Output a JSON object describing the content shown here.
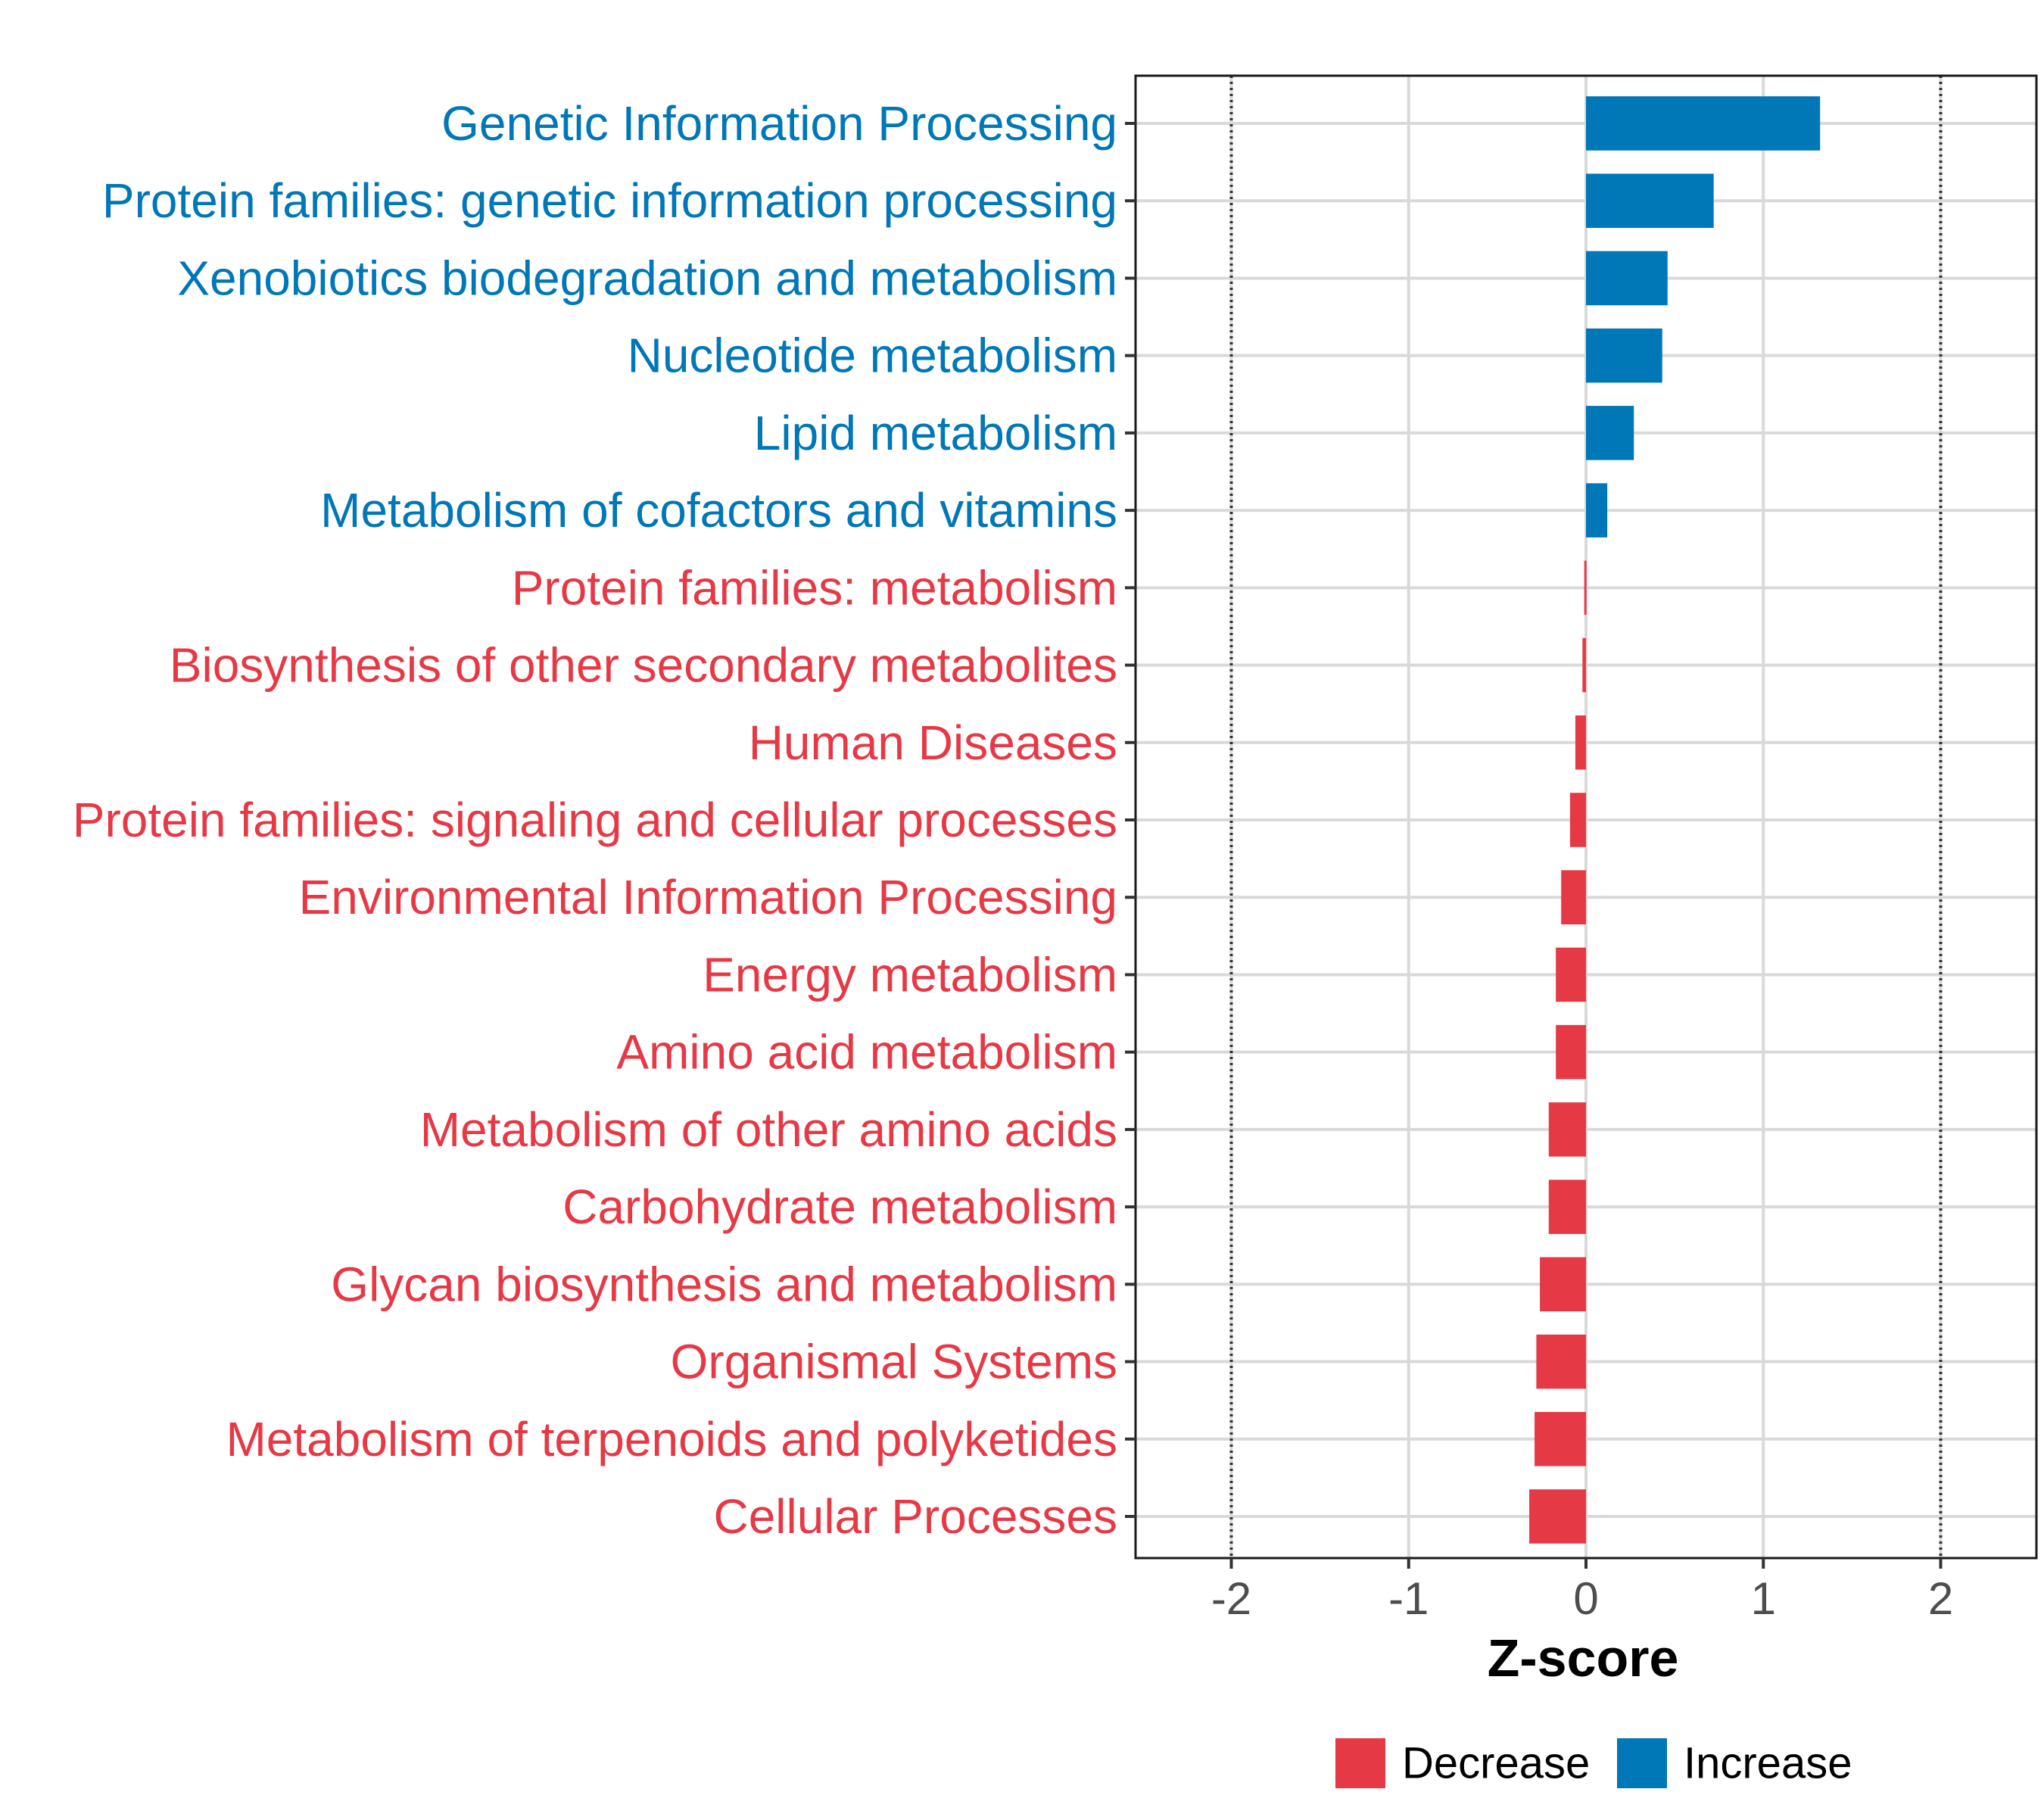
{
  "chart_data": {
    "type": "bar",
    "orientation": "horizontal",
    "title": "",
    "xlabel": "Z-score",
    "ylabel": "",
    "xlim": [
      -2.54,
      2.54
    ],
    "xticks": [
      -2,
      -1,
      0,
      1,
      2
    ],
    "tick_labels": [
      "-2",
      "-1",
      "0",
      "1",
      "2"
    ],
    "reference_lines": [
      -2,
      2
    ],
    "grid": true,
    "legend_position": "bottom",
    "colors": {
      "Decrease": "#e63946",
      "Increase": "#0077b6"
    },
    "categories": [
      "Genetic Information Processing",
      "Protein families: genetic information processing",
      "Xenobiotics biodegradation and metabolism",
      "Nucleotide metabolism",
      "Lipid metabolism",
      "Metabolism of cofactors and vitamins",
      "Protein families: metabolism",
      "Biosynthesis of other secondary metabolites",
      "Human Diseases",
      "Protein families: signaling and cellular processes",
      "Environmental Information Processing",
      "Energy metabolism",
      "Amino acid metabolism",
      "Metabolism of other amino acids",
      "Carbohydrate metabolism",
      "Glycan biosynthesis and metabolism",
      "Organismal Systems",
      "Metabolism of terpenoids and polyketides",
      "Cellular Processes"
    ],
    "values": [
      1.32,
      0.72,
      0.46,
      0.43,
      0.27,
      0.12,
      -0.01,
      -0.02,
      -0.06,
      -0.09,
      -0.14,
      -0.17,
      -0.17,
      -0.21,
      -0.21,
      -0.26,
      -0.28,
      -0.29,
      -0.32
    ],
    "groups": [
      "Increase",
      "Increase",
      "Increase",
      "Increase",
      "Increase",
      "Increase",
      "Decrease",
      "Decrease",
      "Decrease",
      "Decrease",
      "Decrease",
      "Decrease",
      "Decrease",
      "Decrease",
      "Decrease",
      "Decrease",
      "Decrease",
      "Decrease",
      "Decrease"
    ],
    "legend": [
      {
        "label": "Decrease",
        "color": "#e63946"
      },
      {
        "label": "Increase",
        "color": "#0077b6"
      }
    ]
  }
}
